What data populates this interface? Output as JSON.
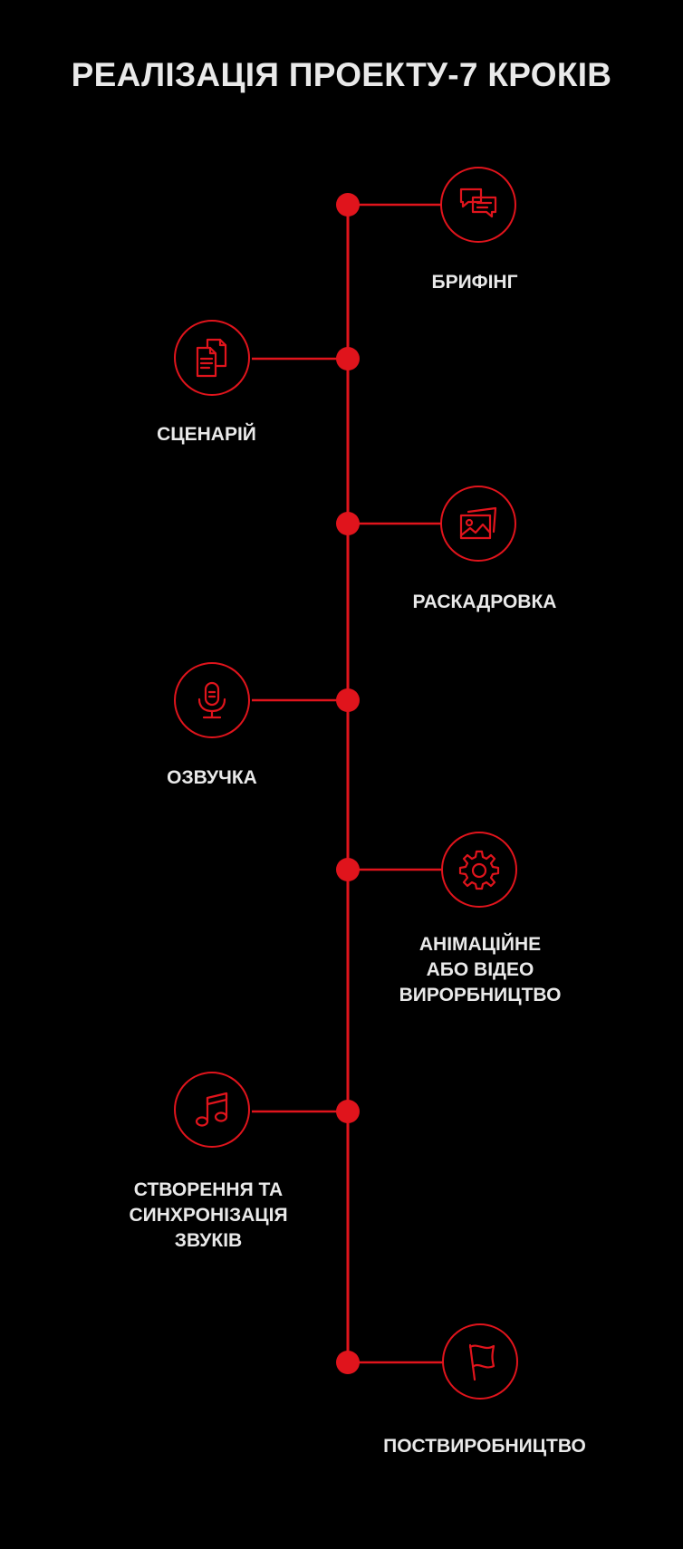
{
  "title": "РЕАЛІЗАЦІЯ ПРОЕКТУ-7 КРОКІВ",
  "colors": {
    "accent": "#e0141c",
    "text": "#e9e9e9",
    "background": "#000000"
  },
  "steps": [
    {
      "label": "БРИФІНГ",
      "icon": "chat-bubbles-icon",
      "side": "right"
    },
    {
      "label": "СЦЕНАРІЙ",
      "icon": "documents-icon",
      "side": "left"
    },
    {
      "label": "РАСКАДРОВКА",
      "icon": "images-icon",
      "side": "right"
    },
    {
      "label": "ОЗВУЧКА",
      "icon": "microphone-icon",
      "side": "left"
    },
    {
      "label": "АНІМАЦІЙНЕ\nАБО ВІДЕО\nВИРОРБНИЦТВО",
      "icon": "gear-icon",
      "side": "right"
    },
    {
      "label": "СТВОРЕННЯ ТА\nСИНХРОНІЗАЦІЯ\nЗВУКІВ",
      "icon": "music-note-icon",
      "side": "left"
    },
    {
      "label": "ПОСТВИРОБНИЦТВО",
      "icon": "flag-icon",
      "side": "right"
    }
  ]
}
